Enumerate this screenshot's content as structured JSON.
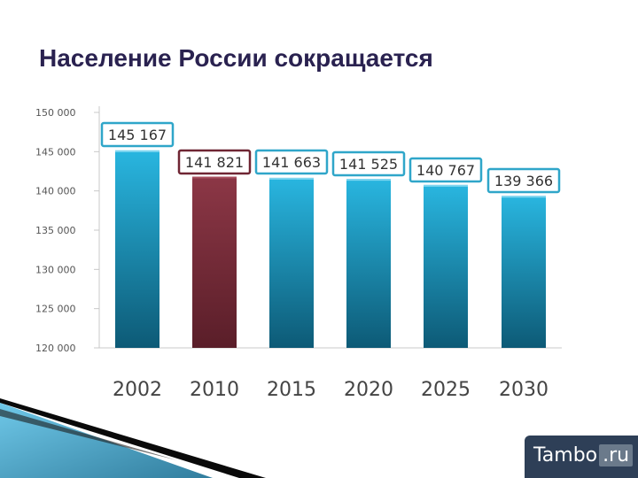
{
  "slide": {
    "title": "Население России сокращается"
  },
  "chart_data": {
    "type": "bar",
    "categories": [
      "2002",
      "2010",
      "2015",
      "2020",
      "2025",
      "2030"
    ],
    "values": [
      145167,
      141821,
      141663,
      141525,
      140767,
      139366
    ],
    "value_labels": [
      "145 167",
      "141 821",
      "141 663",
      "141 525",
      "140 767",
      "139 366"
    ],
    "y_ticks": [
      "150 000",
      "145 000",
      "140 000",
      "135 000",
      "130 000",
      "125 000",
      "120 000"
    ],
    "y_tick_values": [
      150000,
      145000,
      140000,
      135000,
      130000,
      125000,
      120000
    ],
    "ylim": [
      120000,
      150000
    ],
    "title": "",
    "xlabel": "",
    "ylabel": "",
    "colors": {
      "default_bar": "#1b8fb8",
      "highlight_bar": "#7a2e3c",
      "label_border": "#2fa6c9",
      "highlight_label_border": "#6f2533"
    },
    "highlight_index": 1
  },
  "brand": {
    "name": "Tambo",
    "suffix": ".ru"
  }
}
